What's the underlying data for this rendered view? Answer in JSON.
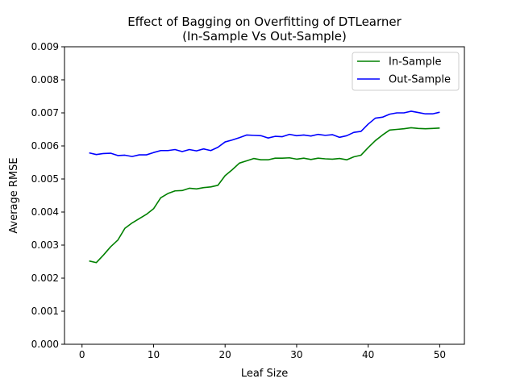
{
  "chart_data": {
    "type": "line",
    "title_line1": "Effect of Bagging on Overfitting of DTLearner",
    "title_line2": "(In-Sample Vs Out-Sample)",
    "xlabel": "Leaf Size",
    "ylabel": "Average RMSE",
    "xlim": [
      -2.45,
      53.45
    ],
    "ylim": [
      0,
      0.009
    ],
    "xticks": [
      0,
      10,
      20,
      30,
      40,
      50
    ],
    "xtick_labels": [
      "0",
      "10",
      "20",
      "30",
      "40",
      "50"
    ],
    "yticks": [
      0,
      0.001,
      0.002,
      0.003,
      0.004,
      0.005,
      0.006,
      0.007,
      0.008,
      0.009
    ],
    "ytick_labels": [
      "0.000",
      "0.001",
      "0.002",
      "0.003",
      "0.004",
      "0.005",
      "0.006",
      "0.007",
      "0.008",
      "0.009"
    ],
    "grid": false,
    "legend_position": "top-right",
    "x": [
      1,
      2,
      3,
      4,
      5,
      6,
      7,
      8,
      9,
      10,
      11,
      12,
      13,
      14,
      15,
      16,
      17,
      18,
      19,
      20,
      21,
      22,
      23,
      24,
      25,
      26,
      27,
      28,
      29,
      30,
      31,
      32,
      33,
      34,
      35,
      36,
      37,
      38,
      39,
      40,
      41,
      42,
      43,
      44,
      45,
      46,
      47,
      48,
      49,
      50
    ],
    "series": [
      {
        "name": "In-Sample",
        "color": "#008000",
        "values": [
          0.00252,
          0.00247,
          0.0027,
          0.00295,
          0.00315,
          0.00351,
          0.00367,
          0.0038,
          0.00393,
          0.0041,
          0.00443,
          0.00456,
          0.00464,
          0.00465,
          0.00472,
          0.0047,
          0.00474,
          0.00476,
          0.00481,
          0.0051,
          0.00528,
          0.00548,
          0.00555,
          0.00562,
          0.00558,
          0.00558,
          0.00563,
          0.00563,
          0.00564,
          0.0056,
          0.00563,
          0.00559,
          0.00563,
          0.00561,
          0.0056,
          0.00562,
          0.00558,
          0.00567,
          0.00572,
          0.00595,
          0.00616,
          0.00633,
          0.00648,
          0.0065,
          0.00652,
          0.00655,
          0.00653,
          0.00652,
          0.00653,
          0.00654
        ]
      },
      {
        "name": "Out-Sample",
        "color": "#0000ff",
        "values": [
          0.00579,
          0.00574,
          0.00577,
          0.00578,
          0.00571,
          0.00572,
          0.00568,
          0.00573,
          0.00573,
          0.0058,
          0.00586,
          0.00586,
          0.00589,
          0.00583,
          0.00589,
          0.00585,
          0.00591,
          0.00586,
          0.00596,
          0.00612,
          0.00618,
          0.00625,
          0.00633,
          0.00632,
          0.00631,
          0.00624,
          0.00629,
          0.00628,
          0.00635,
          0.00631,
          0.00633,
          0.0063,
          0.00635,
          0.00632,
          0.00634,
          0.00626,
          0.00631,
          0.00641,
          0.00644,
          0.00666,
          0.00684,
          0.00687,
          0.00696,
          0.007,
          0.007,
          0.00705,
          0.00701,
          0.00697,
          0.00697,
          0.00702
        ]
      }
    ]
  }
}
